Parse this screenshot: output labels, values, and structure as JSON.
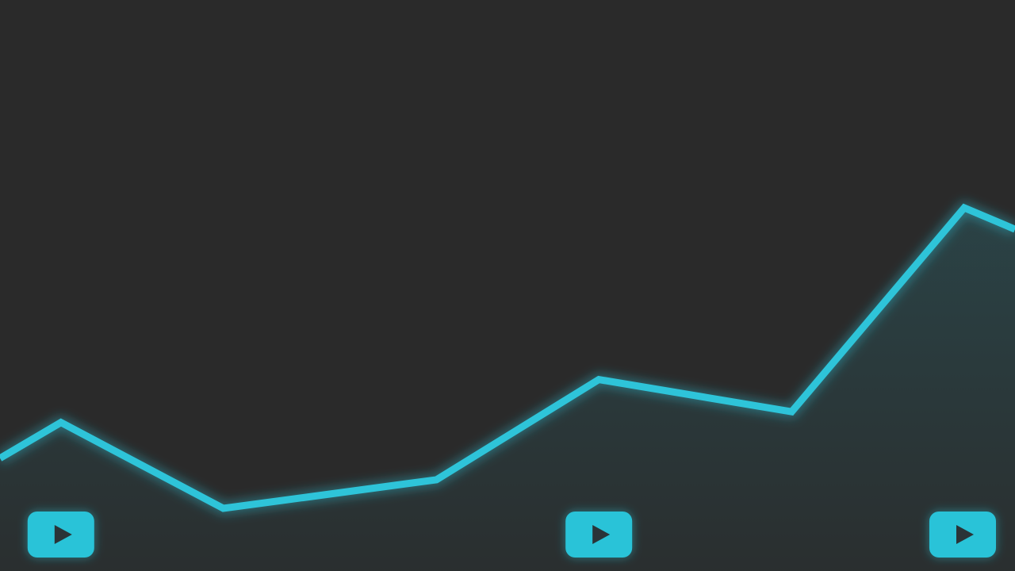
{
  "chart_data": {
    "type": "area",
    "title": "",
    "xlabel": "",
    "ylabel": "",
    "grid": false,
    "legend": "none",
    "y_axis_shown": false,
    "x_axis_shown": false,
    "points": [
      {
        "x": 0.0,
        "y": 0.3
      },
      {
        "x": 0.06,
        "y": 0.4
      },
      {
        "x": 0.22,
        "y": 0.16
      },
      {
        "x": 0.43,
        "y": 0.24
      },
      {
        "x": 0.59,
        "y": 0.52
      },
      {
        "x": 0.78,
        "y": 0.43
      },
      {
        "x": 0.95,
        "y": 1.0
      },
      {
        "x": 1.0,
        "y": 0.94
      }
    ],
    "markers": [
      {
        "x": 0.06,
        "icon": "play-button-icon"
      },
      {
        "x": 0.59,
        "icon": "play-button-icon"
      },
      {
        "x": 0.95,
        "icon": "play-button-icon"
      }
    ]
  },
  "colors": {
    "background": "#2a2a2a",
    "line": "#2ec4d9",
    "area_fill": "#2ec4d9",
    "marker_fill": "#29c3d8",
    "marker_glyph": "#2a3438"
  }
}
